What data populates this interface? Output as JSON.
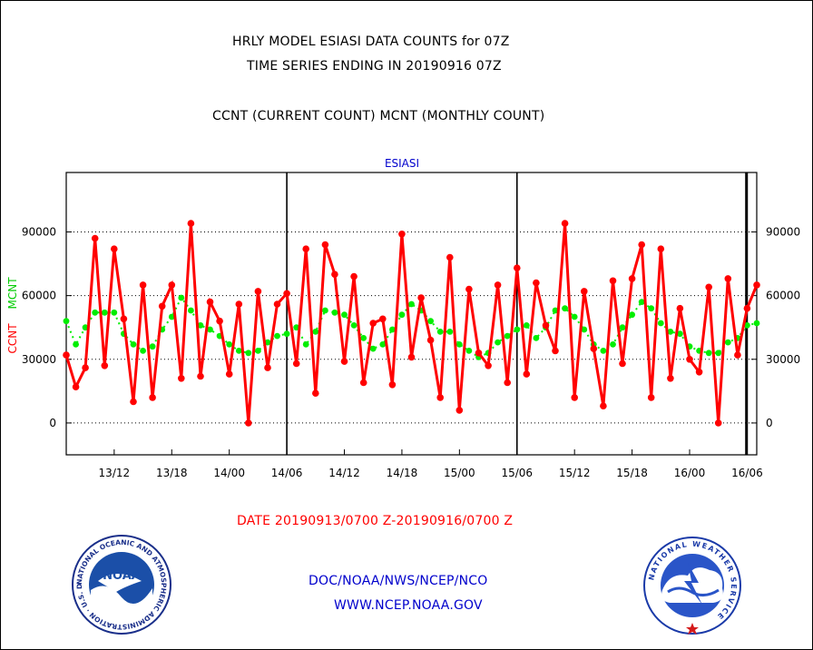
{
  "header": {
    "title_line1": "HRLY MODEL ESIASI DATA COUNTS for 07Z",
    "title_line2": "TIME SERIES ENDING IN 20190916 07Z",
    "subtitle": "CCNT (CURRENT COUNT) MCNT (MONTHLY COUNT)"
  },
  "footer": {
    "date_range": "DATE 20190913/0700 Z-20190916/0700 Z",
    "org_path": "DOC/NOAA/NWS/NCEP/NCO",
    "url": "WWW.NCEP.NOAA.GOV"
  },
  "logos": {
    "noaa_text": "NOAA",
    "noaa_ring": "NATIONAL OCEANIC AND ATMOSPHERIC ADMINISTRATION · U.S. DEPARTMENT OF COMMERCE ·",
    "nws_ring": "NATIONAL WEATHER SERVICE"
  },
  "colors": {
    "ccnt": "#ff0000",
    "mcnt": "#00ee00",
    "panel_title": "#0000cc",
    "footer_links": "#0000cc",
    "date_text": "#ff0000"
  },
  "chart_data": {
    "type": "line",
    "panel_title": "ESIASI",
    "ylabel_left_ccnt": "CCNT",
    "ylabel_left_mcnt": "MCNT",
    "ylim": [
      -15000,
      118000
    ],
    "yticks": [
      0,
      30000,
      60000,
      90000
    ],
    "ytick_labels": [
      "0",
      "30000",
      "60000",
      "90000"
    ],
    "xlim": [
      0,
      72
    ],
    "xticks": [
      5,
      11,
      17,
      23,
      29,
      35,
      41,
      47,
      53,
      59,
      65,
      71
    ],
    "xtick_labels": [
      "13/12",
      "13/18",
      "14/00",
      "14/06",
      "14/12",
      "14/18",
      "15/00",
      "15/06",
      "15/12",
      "15/18",
      "16/00",
      "16/06"
    ],
    "day_boundaries": [
      23,
      47,
      71
    ],
    "grid": true,
    "series": [
      {
        "name": "CCNT",
        "color": "#ff0000",
        "x": [
          0,
          1,
          2,
          3,
          4,
          5,
          6,
          7,
          8,
          9,
          10,
          11,
          12,
          13,
          14,
          15,
          16,
          17,
          18,
          19,
          20,
          21,
          22,
          23,
          24,
          25,
          26,
          27,
          28,
          29,
          30,
          31,
          32,
          33,
          34,
          35,
          36,
          37,
          38,
          39,
          40,
          41,
          42,
          43,
          44,
          45,
          46,
          47,
          48,
          49,
          50,
          51,
          52,
          53,
          54,
          55,
          56,
          57,
          58,
          59,
          60,
          61,
          62,
          63,
          64,
          65,
          66,
          67,
          68,
          69,
          70,
          71,
          72
        ],
        "values": [
          32000,
          17000,
          26000,
          87000,
          27000,
          82000,
          49000,
          10000,
          65000,
          12000,
          55000,
          65000,
          21000,
          94000,
          22000,
          57000,
          48000,
          23000,
          56000,
          0,
          62000,
          26000,
          56000,
          61000,
          28000,
          82000,
          14000,
          84000,
          70000,
          29000,
          69000,
          19000,
          47000,
          49000,
          18000,
          89000,
          31000,
          59000,
          39000,
          12000,
          78000,
          6000,
          63000,
          33000,
          27000,
          65000,
          19000,
          73000,
          23000,
          66000,
          46000,
          34000,
          94000,
          12000,
          62000,
          35000,
          8000,
          67000,
          28000,
          68000,
          84000,
          12000,
          82000,
          21000,
          54000,
          30000,
          24000,
          64000,
          0,
          68000,
          32000,
          54000,
          65000
        ]
      },
      {
        "name": "MCNT",
        "color": "#00ee00",
        "x": [
          0,
          1,
          2,
          3,
          4,
          5,
          6,
          7,
          8,
          9,
          10,
          11,
          12,
          13,
          14,
          15,
          16,
          17,
          18,
          19,
          20,
          21,
          22,
          23,
          24,
          25,
          26,
          27,
          28,
          29,
          30,
          31,
          32,
          33,
          34,
          35,
          36,
          37,
          38,
          39,
          40,
          41,
          42,
          43,
          44,
          45,
          46,
          47,
          48,
          49,
          50,
          51,
          52,
          53,
          54,
          55,
          56,
          57,
          58,
          59,
          60,
          61,
          62,
          63,
          64,
          65,
          66,
          67,
          68,
          69,
          70,
          71,
          72
        ],
        "values": [
          48000,
          37000,
          45000,
          52000,
          52000,
          52000,
          42000,
          37000,
          34000,
          36000,
          44000,
          50000,
          59000,
          53000,
          46000,
          44000,
          41000,
          37000,
          34000,
          33000,
          34000,
          38000,
          41000,
          42000,
          45000,
          37000,
          43000,
          53000,
          52000,
          51000,
          46000,
          40000,
          35000,
          37000,
          44000,
          51000,
          56000,
          53000,
          48000,
          43000,
          43000,
          37000,
          34000,
          31000,
          33000,
          38000,
          41000,
          44000,
          46000,
          40000,
          45000,
          53000,
          54000,
          50000,
          44000,
          37000,
          34000,
          37000,
          45000,
          51000,
          57000,
          54000,
          47000,
          43000,
          42000,
          36000,
          34000,
          33000,
          33000,
          38000,
          40000,
          46000,
          47000
        ]
      }
    ]
  }
}
